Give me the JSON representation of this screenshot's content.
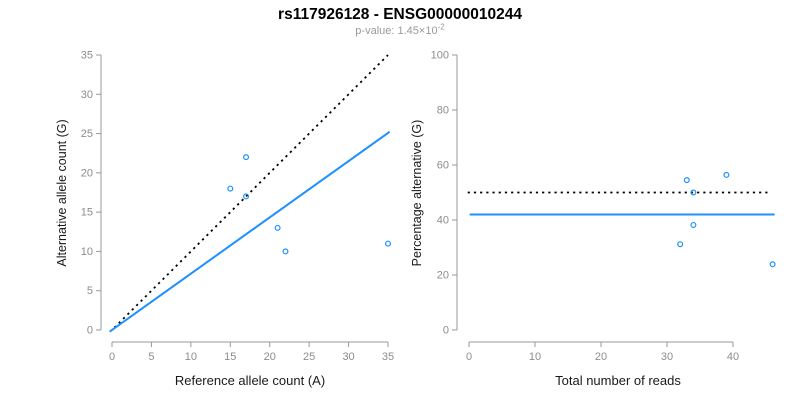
{
  "figure": {
    "title": "rs117926128 - ENSG00000010244",
    "pvalue_label": "p-value: ",
    "pvalue_base": "1.45×10",
    "pvalue_exponent": "-2"
  },
  "colors": {
    "accent_blue": "#1E90FF",
    "dotted_black": "#000000",
    "axis_gray": "#999999",
    "tick_label_gray": "#8c8c8c",
    "axis_title_black": "#1a1a1a"
  },
  "chart_data": [
    {
      "type": "scatter",
      "name": "allele-counts-plot",
      "xlabel": "Reference allele count (A)",
      "ylabel": "Alternative allele count (G)",
      "xlim": [
        0,
        35
      ],
      "ylim": [
        0,
        35
      ],
      "xticks": [
        0,
        5,
        10,
        15,
        20,
        25,
        30,
        35
      ],
      "yticks": [
        0,
        5,
        10,
        15,
        20,
        25,
        30,
        35
      ],
      "grid": false,
      "legend": null,
      "points": [
        [
          17,
          22
        ],
        [
          15,
          18
        ],
        [
          17,
          17
        ],
        [
          21,
          13
        ],
        [
          22,
          10
        ],
        [
          35,
          11
        ]
      ],
      "point_color": "#1E90FF",
      "lines": [
        {
          "name": "identity-line",
          "style": "dotted",
          "color": "#000000",
          "x": [
            0.3,
            35.0
          ],
          "y": [
            0.3,
            35.0
          ]
        },
        {
          "name": "regression-line",
          "style": "solid",
          "color": "#1E90FF",
          "x": [
            -0.3,
            35.2
          ],
          "y": [
            -0.21,
            25.22
          ]
        }
      ]
    },
    {
      "type": "scatter",
      "name": "percentage-alternative-plot",
      "xlabel": "Total number of reads",
      "ylabel": "Percentage alternative (G)",
      "xlim": [
        0,
        46
      ],
      "ylim": [
        0,
        100
      ],
      "xticks": [
        0,
        10,
        20,
        30,
        40
      ],
      "yticks": [
        0,
        20,
        40,
        60,
        80,
        100
      ],
      "grid": false,
      "legend": null,
      "points": [
        [
          33,
          54.5
        ],
        [
          34,
          50.0
        ],
        [
          39,
          56.4
        ],
        [
          34,
          38.2
        ],
        [
          32,
          31.2
        ],
        [
          46,
          23.9
        ]
      ],
      "point_color": "#1E90FF",
      "lines": [
        {
          "name": "expected-50pct-line",
          "style": "dotted",
          "color": "#000000",
          "x": [
            -0.2,
            45.4
          ],
          "y": [
            50,
            50
          ]
        },
        {
          "name": "mean-percentage-line",
          "style": "solid",
          "color": "#1E90FF",
          "x": [
            0.1,
            46.3
          ],
          "y": [
            42,
            42
          ]
        }
      ]
    }
  ]
}
